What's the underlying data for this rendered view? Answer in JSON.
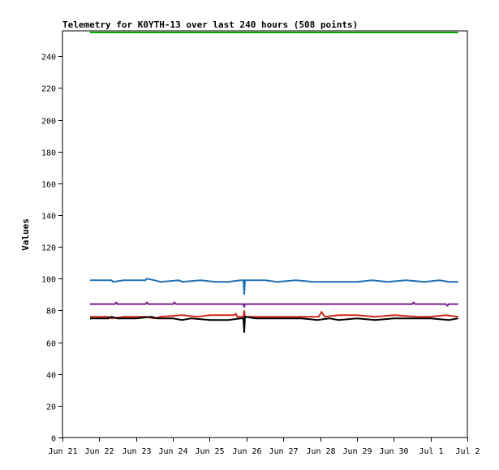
{
  "chart_data": {
    "type": "line",
    "title": "Telemetry for K0YTH-13 over last 240 hours (508 points)",
    "xlabel": "",
    "ylabel": "Values",
    "ylim": [
      0,
      256
    ],
    "yticks": [
      0,
      20,
      40,
      60,
      80,
      100,
      120,
      140,
      160,
      180,
      200,
      220,
      240
    ],
    "xlim": [
      "2024-06-21",
      "2024-07-02"
    ],
    "xticks": [
      {
        "date": "2024-06-21",
        "label": "Jun 21"
      },
      {
        "date": "2024-06-22",
        "label": "Jun 22"
      },
      {
        "date": "2024-06-23",
        "label": "Jun 23"
      },
      {
        "date": "2024-06-24",
        "label": "Jun 24"
      },
      {
        "date": "2024-06-25",
        "label": "Jun 25"
      },
      {
        "date": "2024-06-26",
        "label": "Jun 26"
      },
      {
        "date": "2024-06-27",
        "label": "Jun 27"
      },
      {
        "date": "2024-06-28",
        "label": "Jun 28"
      },
      {
        "date": "2024-06-29",
        "label": "Jun 29"
      },
      {
        "date": "2024-06-30",
        "label": "Jun 30"
      },
      {
        "date": "2024-07-01",
        "label": "Jul 1"
      },
      {
        "date": "2024-07-02",
        "label": "Jul 2"
      }
    ],
    "grid": false,
    "legend": "none",
    "series": [
      {
        "color": "#00aa00",
        "points": [
          [
            "2024-06-21T18:00",
            255
          ],
          [
            "2024-07-01T18:00",
            255
          ]
        ]
      },
      {
        "color": "#1f6fb4",
        "points": [
          [
            "2024-06-21T18:00",
            99
          ],
          [
            "2024-06-22T08:00",
            99
          ],
          [
            "2024-06-22T09:00",
            98
          ],
          [
            "2024-06-22T16:00",
            99
          ],
          [
            "2024-06-23T06:00",
            99
          ],
          [
            "2024-06-23T07:00",
            100
          ],
          [
            "2024-06-23T12:00",
            99
          ],
          [
            "2024-06-23T16:00",
            98
          ],
          [
            "2024-06-24T04:00",
            99
          ],
          [
            "2024-06-24T06:00",
            98
          ],
          [
            "2024-06-24T18:00",
            99
          ],
          [
            "2024-06-25T04:00",
            98
          ],
          [
            "2024-06-25T12:00",
            98
          ],
          [
            "2024-06-25T20:00",
            99
          ],
          [
            "2024-06-25T22:00",
            99
          ],
          [
            "2024-06-25T22:30",
            90
          ],
          [
            "2024-06-25T23:00",
            99
          ],
          [
            "2024-06-26T12:00",
            99
          ],
          [
            "2024-06-26T20:00",
            98
          ],
          [
            "2024-06-27T08:00",
            99
          ],
          [
            "2024-06-27T20:00",
            98
          ],
          [
            "2024-06-28T10:00",
            98
          ],
          [
            "2024-06-29T00:00",
            98
          ],
          [
            "2024-06-29T10:00",
            99
          ],
          [
            "2024-06-29T20:00",
            98
          ],
          [
            "2024-06-30T08:00",
            99
          ],
          [
            "2024-06-30T20:00",
            98
          ],
          [
            "2024-07-01T06:00",
            99
          ],
          [
            "2024-07-01T12:00",
            98
          ],
          [
            "2024-07-01T18:00",
            98
          ]
        ]
      },
      {
        "color": "#7a1f8c",
        "points": [
          [
            "2024-06-21T18:00",
            84
          ],
          [
            "2024-06-22T10:00",
            84
          ],
          [
            "2024-06-22T11:00",
            85
          ],
          [
            "2024-06-22T12:00",
            84
          ],
          [
            "2024-06-23T06:00",
            84
          ],
          [
            "2024-06-23T07:00",
            85
          ],
          [
            "2024-06-23T08:00",
            84
          ],
          [
            "2024-06-24T00:00",
            84
          ],
          [
            "2024-06-24T01:00",
            85
          ],
          [
            "2024-06-24T02:00",
            84
          ],
          [
            "2024-06-25T12:00",
            84
          ],
          [
            "2024-06-25T22:00",
            84
          ],
          [
            "2024-06-25T22:30",
            82
          ],
          [
            "2024-06-25T23:00",
            84
          ],
          [
            "2024-06-27T00:00",
            84
          ],
          [
            "2024-06-28T00:00",
            84
          ],
          [
            "2024-06-29T00:00",
            84
          ],
          [
            "2024-06-30T00:00",
            84
          ],
          [
            "2024-06-30T12:00",
            84
          ],
          [
            "2024-06-30T13:00",
            85
          ],
          [
            "2024-06-30T14:00",
            84
          ],
          [
            "2024-07-01T10:00",
            84
          ],
          [
            "2024-07-01T11:00",
            83
          ],
          [
            "2024-07-01T12:00",
            84
          ],
          [
            "2024-07-01T18:00",
            84
          ]
        ]
      },
      {
        "color": "#cc2a1f",
        "points": [
          [
            "2024-06-21T18:00",
            76
          ],
          [
            "2024-06-22T06:00",
            76
          ],
          [
            "2024-06-22T08:00",
            75
          ],
          [
            "2024-06-22T16:00",
            76
          ],
          [
            "2024-06-23T06:00",
            76
          ],
          [
            "2024-06-23T12:00",
            75
          ],
          [
            "2024-06-23T16:00",
            76
          ],
          [
            "2024-06-24T06:00",
            77
          ],
          [
            "2024-06-24T16:00",
            76
          ],
          [
            "2024-06-25T00:00",
            77
          ],
          [
            "2024-06-25T16:00",
            77
          ],
          [
            "2024-06-25T17:00",
            78
          ],
          [
            "2024-06-25T18:00",
            76
          ],
          [
            "2024-06-25T22:00",
            76
          ],
          [
            "2024-06-25T22:30",
            80
          ],
          [
            "2024-06-25T23:00",
            76
          ],
          [
            "2024-06-26T12:00",
            76
          ],
          [
            "2024-06-27T06:00",
            76
          ],
          [
            "2024-06-27T16:00",
            76
          ],
          [
            "2024-06-27T23:00",
            76
          ],
          [
            "2024-06-28T01:00",
            79
          ],
          [
            "2024-06-28T03:00",
            76
          ],
          [
            "2024-06-28T12:00",
            77
          ],
          [
            "2024-06-29T00:00",
            77
          ],
          [
            "2024-06-29T12:00",
            76
          ],
          [
            "2024-06-30T00:00",
            77
          ],
          [
            "2024-06-30T16:00",
            76
          ],
          [
            "2024-07-01T00:00",
            76
          ],
          [
            "2024-07-01T10:00",
            77
          ],
          [
            "2024-07-01T18:00",
            76
          ]
        ]
      },
      {
        "color": "#000000",
        "points": [
          [
            "2024-06-21T18:00",
            75
          ],
          [
            "2024-06-22T06:00",
            75
          ],
          [
            "2024-06-22T08:00",
            76
          ],
          [
            "2024-06-22T12:00",
            75
          ],
          [
            "2024-06-23T00:00",
            75
          ],
          [
            "2024-06-23T10:00",
            76
          ],
          [
            "2024-06-23T14:00",
            75
          ],
          [
            "2024-06-24T00:00",
            75
          ],
          [
            "2024-06-24T06:00",
            74
          ],
          [
            "2024-06-24T12:00",
            75
          ],
          [
            "2024-06-25T00:00",
            74
          ],
          [
            "2024-06-25T12:00",
            74
          ],
          [
            "2024-06-25T20:00",
            75
          ],
          [
            "2024-06-25T22:00",
            75
          ],
          [
            "2024-06-25T22:30",
            66
          ],
          [
            "2024-06-25T23:00",
            76
          ],
          [
            "2024-06-26T06:00",
            75
          ],
          [
            "2024-06-26T16:00",
            75
          ],
          [
            "2024-06-27T00:00",
            75
          ],
          [
            "2024-06-27T12:00",
            75
          ],
          [
            "2024-06-27T22:00",
            74
          ],
          [
            "2024-06-28T06:00",
            75
          ],
          [
            "2024-06-28T12:00",
            74
          ],
          [
            "2024-06-29T00:00",
            75
          ],
          [
            "2024-06-29T12:00",
            74
          ],
          [
            "2024-06-30T00:00",
            75
          ],
          [
            "2024-06-30T12:00",
            75
          ],
          [
            "2024-07-01T00:00",
            75
          ],
          [
            "2024-07-01T12:00",
            74
          ],
          [
            "2024-07-01T18:00",
            75
          ]
        ]
      }
    ]
  }
}
